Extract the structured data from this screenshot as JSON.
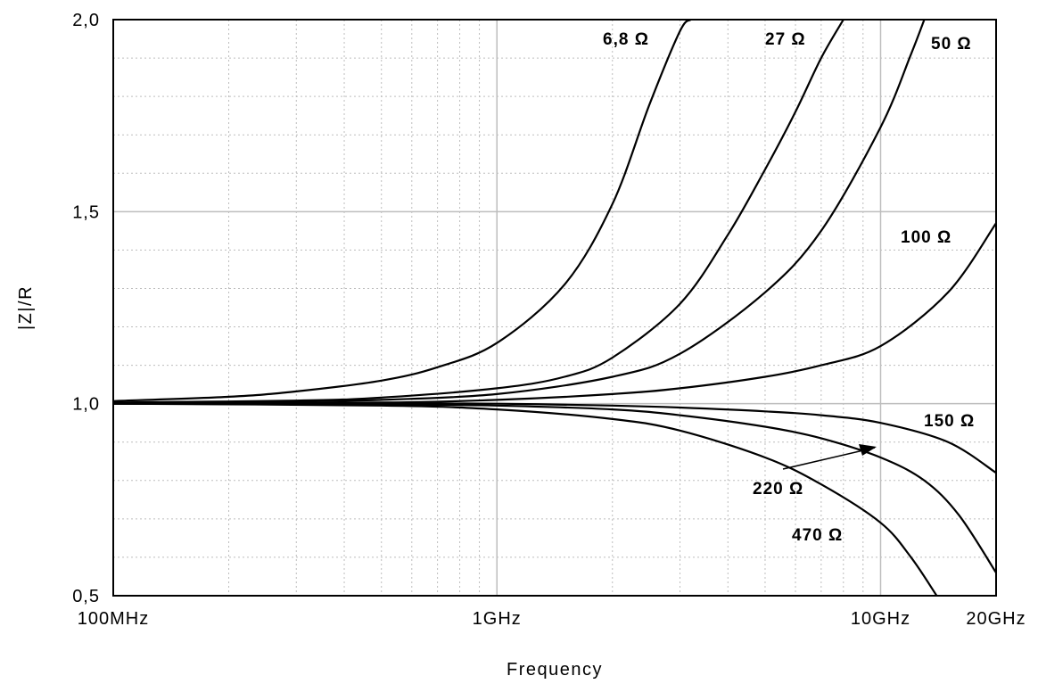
{
  "chart_data": {
    "type": "line",
    "xlabel": "Frequency",
    "ylabel": "|Z|/R",
    "xscale": "log",
    "xlim": [
      0.1,
      20
    ],
    "ylim": [
      0.5,
      2.0
    ],
    "grid": true,
    "x_ticks": [
      {
        "value": 0.1,
        "label": "100MHz"
      },
      {
        "value": 1,
        "label": "1GHz"
      },
      {
        "value": 10,
        "label": "10GHz"
      },
      {
        "value": 20,
        "label": "20GHz"
      }
    ],
    "y_ticks": [
      {
        "value": 0.5,
        "label": "0,5"
      },
      {
        "value": 1.0,
        "label": "1,0"
      },
      {
        "value": 1.5,
        "label": "1,5"
      },
      {
        "value": 2.0,
        "label": "2,0"
      }
    ],
    "series": [
      {
        "name": "6,8 Ω",
        "x": [
          0.1,
          0.2,
          0.3,
          0.5,
          0.7,
          1.0,
          1.5,
          2.0,
          2.5,
          3.0,
          3.2
        ],
        "y": [
          1.007,
          1.018,
          1.032,
          1.06,
          1.095,
          1.158,
          1.31,
          1.52,
          1.78,
          1.97,
          2.0
        ]
      },
      {
        "name": "27 Ω",
        "x": [
          0.1,
          0.3,
          0.5,
          1.0,
          1.5,
          2.0,
          3.0,
          4.0,
          5.0,
          6.0,
          7.0,
          8.0
        ],
        "y": [
          1.003,
          1.008,
          1.016,
          1.04,
          1.07,
          1.12,
          1.26,
          1.44,
          1.61,
          1.76,
          1.9,
          2.0
        ]
      },
      {
        "name": "50 Ω",
        "x": [
          0.1,
          0.3,
          0.5,
          1.0,
          2.0,
          3.0,
          5.0,
          7.0,
          10.0,
          12.0,
          13.0
        ],
        "y": [
          1.002,
          1.006,
          1.01,
          1.025,
          1.07,
          1.13,
          1.29,
          1.45,
          1.72,
          1.91,
          2.0
        ]
      },
      {
        "name": "100 Ω",
        "x": [
          0.1,
          0.5,
          1.0,
          2.0,
          3.0,
          5.0,
          7.0,
          10.0,
          15.0,
          20.0
        ],
        "y": [
          1.0,
          1.003,
          1.01,
          1.025,
          1.04,
          1.07,
          1.1,
          1.15,
          1.29,
          1.47
        ]
      },
      {
        "name": "150 Ω",
        "x": [
          0.1,
          0.5,
          1.0,
          2.0,
          3.0,
          5.0,
          7.0,
          10.0,
          15.0,
          20.0
        ],
        "y": [
          1.0,
          1.0,
          1.0,
          0.995,
          0.99,
          0.98,
          0.97,
          0.95,
          0.9,
          0.82
        ]
      },
      {
        "name": "220 Ω",
        "x": [
          0.1,
          0.5,
          1.0,
          2.0,
          3.0,
          5.0,
          7.0,
          10.0,
          13.0,
          16.0,
          20.0
        ],
        "y": [
          1.0,
          0.998,
          0.995,
          0.985,
          0.97,
          0.94,
          0.91,
          0.86,
          0.8,
          0.71,
          0.56
        ]
      },
      {
        "name": "470 Ω",
        "x": [
          0.1,
          0.5,
          1.0,
          2.0,
          3.0,
          5.0,
          7.0,
          10.0,
          12.0,
          14.0
        ],
        "y": [
          1.0,
          0.995,
          0.985,
          0.96,
          0.93,
          0.86,
          0.79,
          0.69,
          0.6,
          0.5
        ]
      }
    ]
  }
}
